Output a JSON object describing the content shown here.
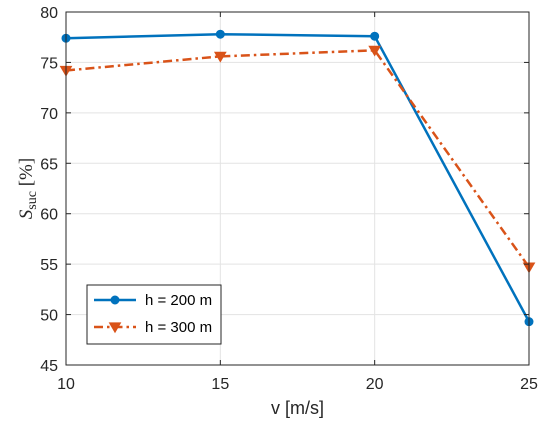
{
  "chart_data": {
    "type": "line",
    "x": [
      10,
      15,
      20,
      25
    ],
    "xlabel": "v [m/s]",
    "ylabel": {
      "main": "S",
      "sub": "suc",
      "rest": " [%]"
    },
    "xlim": [
      10,
      25
    ],
    "ylim": [
      45,
      80
    ],
    "xticks": [
      10,
      15,
      20,
      25
    ],
    "yticks": [
      45,
      50,
      55,
      60,
      65,
      70,
      75,
      80
    ],
    "grid": true,
    "legend_position": "bottom-left",
    "series": [
      {
        "name": "h = 200 m",
        "values": [
          77.4,
          77.8,
          77.6,
          49.3
        ],
        "color": "#0072BD",
        "line_style": "solid",
        "marker": "circle"
      },
      {
        "name": "h = 300 m",
        "values": [
          74.2,
          75.6,
          76.2,
          54.7
        ],
        "color": "#D95319",
        "line_style": "dash-dot",
        "marker": "triangle-down"
      }
    ]
  }
}
